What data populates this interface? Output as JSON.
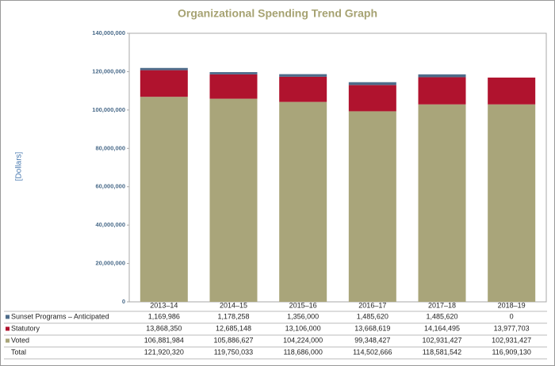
{
  "chart_data": {
    "type": "stacked_bar",
    "title": "Organizational Spending Trend Graph",
    "y_label": "[Dollars]",
    "categories": [
      "2013–14",
      "2014–15",
      "2015–16",
      "2016–17",
      "2017–18",
      "2018–19"
    ],
    "series": [
      {
        "name": "Sunset Programs – Anticipated",
        "color": "#4e6c8a",
        "values": [
          1169986,
          1178258,
          1356000,
          1485620,
          1485620,
          0
        ],
        "value_labels": [
          "1,169,986",
          "1,178,258",
          "1,356,000",
          "1,485,620",
          "1,485,620",
          "0"
        ]
      },
      {
        "name": "Statutory",
        "color": "#b0132e",
        "values": [
          13868350,
          12685148,
          13106000,
          13668619,
          14164495,
          13977703
        ],
        "value_labels": [
          "13,868,350",
          "12,685,148",
          "13,106,000",
          "13,668,619",
          "14,164,495",
          "13,977,703"
        ]
      },
      {
        "name": "Voted",
        "color": "#a9a57a",
        "values": [
          106881984,
          105886627,
          104224000,
          99348427,
          102931427,
          102931427
        ],
        "value_labels": [
          "106,881,984",
          "105,886,627",
          "104,224,000",
          "99,348,427",
          "102,931,427",
          "102,931,427"
        ]
      }
    ],
    "total": {
      "name": "Total",
      "values": [
        121920320,
        119750033,
        118686000,
        114502666,
        118581542,
        116909130
      ],
      "value_labels": [
        "121,920,320",
        "119,750,033",
        "118,686,000",
        "114,502,666",
        "118,581,542",
        "116,909,130"
      ]
    },
    "ylim": [
      0,
      140000000
    ],
    "yticks": [
      0,
      {
        "value": 20000000,
        "label": "20,000,000"
      },
      {
        "value": 40000000,
        "label": "40,000,000"
      },
      {
        "value": 60000000,
        "label": "60,000,000"
      },
      {
        "value": 80000000,
        "label": "80,000,000"
      },
      {
        "value": 100000000,
        "label": "100,000,000"
      },
      {
        "value": 120000000,
        "label": "120,000,000"
      },
      {
        "value": 140000000,
        "label": "140,000,000"
      }
    ]
  }
}
